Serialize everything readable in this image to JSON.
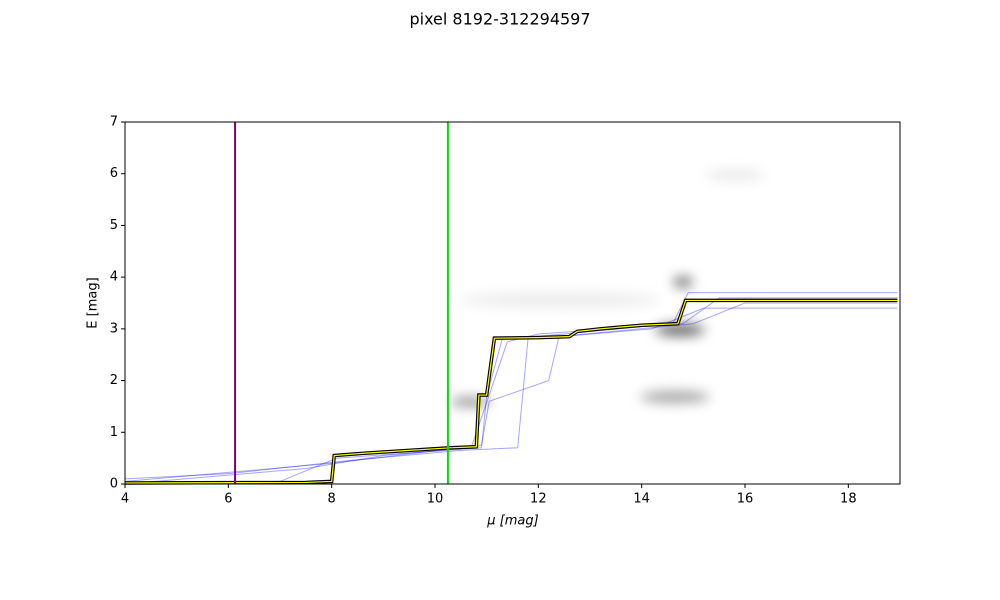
{
  "chart_data": {
    "type": "line",
    "title": "pixel 8192-312294597",
    "x_label": "μ [mag]",
    "y_label": "E [mag]",
    "xlim": [
      4,
      19
    ],
    "ylim": [
      0,
      7
    ],
    "xticks": [
      4,
      6,
      8,
      10,
      12,
      14,
      16,
      18
    ],
    "yticks": [
      0,
      1,
      2,
      3,
      4,
      5,
      6,
      7
    ],
    "vlines": [
      {
        "x": 6.13,
        "color": "#800080"
      },
      {
        "x": 10.25,
        "color": "#00e000"
      }
    ],
    "series": [
      {
        "color": "#0000ff",
        "x": [
          4,
          7,
          8.1,
          10.9,
          11.0,
          11.3,
          12.5,
          14.6,
          14.9,
          18.95
        ],
        "values": [
          0,
          0.05,
          0.5,
          0.7,
          1.7,
          2.8,
          2.9,
          3.1,
          3.7,
          3.7
        ]
      },
      {
        "color": "#0000ff",
        "x": [
          4,
          6,
          8.3,
          10.5,
          11.6,
          11.8,
          14.2,
          15.2,
          18.95
        ],
        "values": [
          0.1,
          0.2,
          0.45,
          0.65,
          0.7,
          2.8,
          3.0,
          3.4,
          3.4
        ]
      },
      {
        "color": "#0000ff",
        "x": [
          4,
          7.5,
          9.0,
          10.7,
          11.4,
          12.0,
          14.8,
          15.5,
          18.95
        ],
        "values": [
          0,
          0.3,
          0.55,
          0.7,
          2.75,
          2.9,
          3.1,
          3.6,
          3.6
        ]
      },
      {
        "color": "#0000ff",
        "x": [
          4,
          8.0,
          10.9,
          11.05,
          12.2,
          12.4,
          15.0,
          16.0,
          18.95
        ],
        "values": [
          0.05,
          0.4,
          0.75,
          1.6,
          2.0,
          2.85,
          3.1,
          3.5,
          3.5
        ]
      },
      {
        "color": "#000000",
        "highlight": "#ffff00",
        "x": [
          4,
          7.5,
          8.0,
          8.05,
          8.7,
          9.5,
          10.3,
          10.8,
          10.85,
          11.0,
          11.15,
          12.0,
          12.6,
          12.75,
          13.2,
          14.0,
          14.7,
          14.85,
          15.5,
          18.95
        ],
        "values": [
          0.02,
          0.03,
          0.05,
          0.55,
          0.6,
          0.65,
          0.7,
          0.72,
          1.72,
          1.72,
          2.82,
          2.83,
          2.85,
          2.95,
          3.0,
          3.07,
          3.1,
          3.55,
          3.55,
          3.55
        ]
      }
    ]
  }
}
